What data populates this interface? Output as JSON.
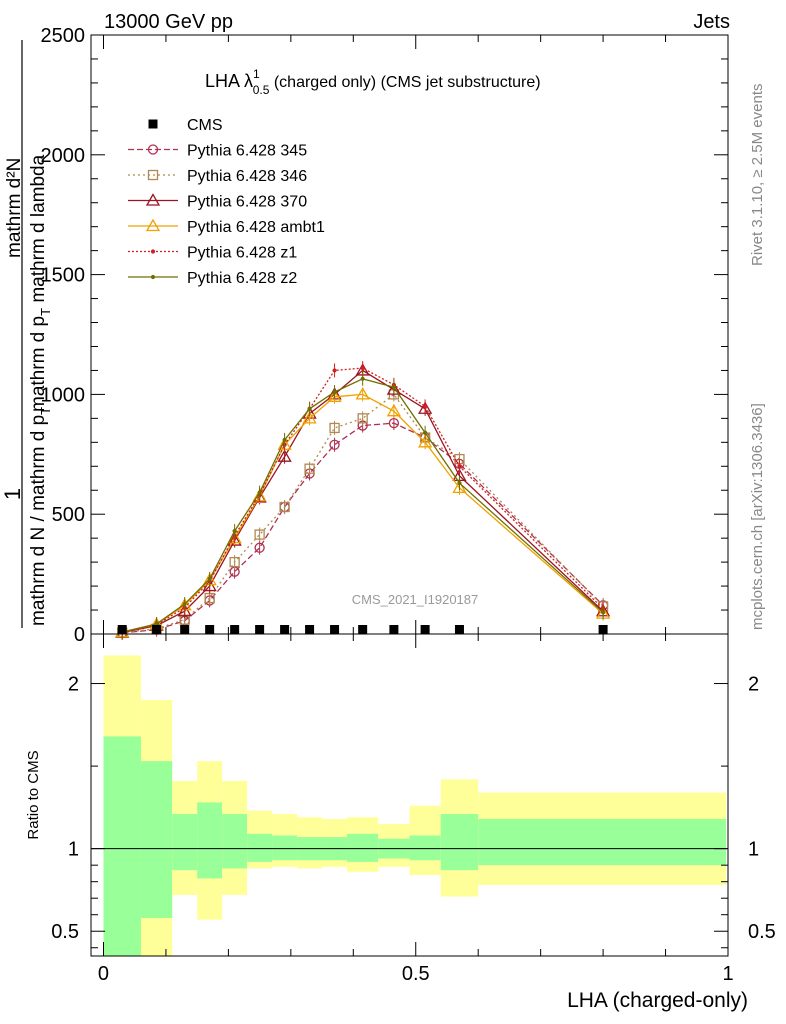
{
  "header": {
    "left": "13000 GeV pp",
    "right": "Jets"
  },
  "side_labels": {
    "rivet": "Rivet 3.1.10, ≥ 2.5M events",
    "mcplots": "mcplots.cern.ch [arXiv:1306.3436]"
  },
  "chart_data": [
    {
      "type": "line",
      "title_main": "LHA λ",
      "title_sup": "1",
      "title_sub": "0.5",
      "title_rest": " (charged only) (CMS jet substructure)",
      "watermark": "CMS_2021_I1920187",
      "ylabel": {
        "numerator": "1",
        "denominator": "mathrm d N / mathrm d p",
        "numerator2": "mathrm d²N",
        "denominator2": "mathrm d p",
        "denominator2_rest": " mathrm d lambda",
        "sub": "T"
      },
      "xlim": [
        -0.02,
        1.0
      ],
      "ylim": [
        0,
        2500
      ],
      "yticks": [
        0,
        500,
        1000,
        1500,
        2000,
        2500
      ],
      "ytick_labels": [
        "0",
        "500",
        "1000",
        "1500",
        "2000",
        "2500"
      ],
      "legend_position": "top-left",
      "cms": {
        "name": "CMS",
        "x": [
          0.03,
          0.085,
          0.13,
          0.17,
          0.21,
          0.25,
          0.29,
          0.33,
          0.37,
          0.415,
          0.465,
          0.515,
          0.57,
          0.8
        ],
        "y": [
          4,
          4,
          4,
          4,
          4,
          4,
          4,
          4,
          4,
          4,
          4,
          4,
          4,
          4
        ]
      },
      "series": [
        {
          "name": "Pythia 6.428 345",
          "color": "#b03050",
          "dash": "6,3",
          "marker": "circle",
          "x": [
            0.03,
            0.085,
            0.13,
            0.17,
            0.21,
            0.25,
            0.29,
            0.33,
            0.37,
            0.415,
            0.465,
            0.515,
            0.57,
            0.8
          ],
          "y": [
            5,
            18,
            55,
            140,
            260,
            360,
            530,
            670,
            790,
            870,
            880,
            820,
            710,
            120
          ]
        },
        {
          "name": "Pythia 6.428 346",
          "color": "#b08850",
          "dash": "2,3",
          "marker": "square",
          "x": [
            0.03,
            0.085,
            0.13,
            0.17,
            0.21,
            0.25,
            0.29,
            0.33,
            0.37,
            0.415,
            0.465,
            0.515,
            0.57,
            0.8
          ],
          "y": [
            6,
            22,
            60,
            150,
            300,
            415,
            530,
            690,
            860,
            900,
            1000,
            820,
            730,
            115
          ]
        },
        {
          "name": "Pythia 6.428 370",
          "color": "#9b1320",
          "dash": "",
          "marker": "triangle",
          "x": [
            0.03,
            0.085,
            0.13,
            0.17,
            0.21,
            0.25,
            0.29,
            0.33,
            0.37,
            0.415,
            0.465,
            0.515,
            0.57,
            0.8
          ],
          "y": [
            6,
            35,
            95,
            200,
            390,
            570,
            740,
            920,
            1000,
            1100,
            1020,
            940,
            660,
            95
          ]
        },
        {
          "name": "Pythia 6.428 ambt1",
          "color": "#f0a000",
          "dash": "",
          "marker": "triangle",
          "x": [
            0.03,
            0.085,
            0.13,
            0.17,
            0.21,
            0.25,
            0.29,
            0.33,
            0.37,
            0.415,
            0.465,
            0.515,
            0.57,
            0.8
          ],
          "y": [
            8,
            40,
            120,
            225,
            400,
            575,
            790,
            900,
            990,
            1000,
            930,
            800,
            610,
            85
          ]
        },
        {
          "name": "Pythia 6.428 z1",
          "color": "#d02020",
          "dash": "2,2",
          "marker": "dot",
          "x": [
            0.03,
            0.085,
            0.13,
            0.17,
            0.21,
            0.25,
            0.29,
            0.33,
            0.37,
            0.415,
            0.465,
            0.515,
            0.57,
            0.8
          ],
          "y": [
            7,
            38,
            110,
            220,
            410,
            580,
            790,
            940,
            1100,
            1110,
            1040,
            950,
            700,
            105
          ]
        },
        {
          "name": "Pythia 6.428 z2",
          "color": "#707000",
          "dash": "",
          "marker": "dot",
          "x": [
            0.03,
            0.085,
            0.13,
            0.17,
            0.21,
            0.25,
            0.29,
            0.33,
            0.37,
            0.415,
            0.465,
            0.515,
            0.57,
            0.8
          ],
          "y": [
            8,
            42,
            125,
            230,
            430,
            590,
            810,
            940,
            1010,
            1065,
            1030,
            840,
            630,
            90
          ]
        }
      ]
    },
    {
      "type": "area",
      "ylabel": "Ratio to CMS",
      "xlabel": "LHA (charged-only)",
      "xlim": [
        -0.02,
        1.0
      ],
      "ylim": [
        0.35,
        2.3
      ],
      "xticks": [
        0,
        0.5,
        1
      ],
      "xtick_labels": [
        "0",
        "0.5",
        "1"
      ],
      "yticks": [
        0.5,
        1,
        2
      ],
      "ytick_labels": [
        "0.5",
        "1",
        "2"
      ],
      "reference_line": 1,
      "bins": [
        {
          "lo": 0.0,
          "hi": 0.06,
          "y1lo": 0.3,
          "y1hi": 1.68,
          "y2lo": 0.3,
          "y2hi": 2.17
        },
        {
          "lo": 0.06,
          "hi": 0.11,
          "y1lo": 0.58,
          "y1hi": 1.53,
          "y2lo": 0.3,
          "y2hi": 1.9
        },
        {
          "lo": 0.11,
          "hi": 0.15,
          "y1lo": 0.87,
          "y1hi": 1.21,
          "y2lo": 0.72,
          "y2hi": 1.41
        },
        {
          "lo": 0.15,
          "hi": 0.19,
          "y1lo": 0.82,
          "y1hi": 1.28,
          "y2lo": 0.57,
          "y2hi": 1.53
        },
        {
          "lo": 0.19,
          "hi": 0.23,
          "y1lo": 0.88,
          "y1hi": 1.21,
          "y2lo": 0.72,
          "y2hi": 1.41
        },
        {
          "lo": 0.23,
          "hi": 0.27,
          "y1lo": 0.92,
          "y1hi": 1.09,
          "y2lo": 0.88,
          "y2hi": 1.23
        },
        {
          "lo": 0.27,
          "hi": 0.31,
          "y1lo": 0.93,
          "y1hi": 1.08,
          "y2lo": 0.89,
          "y2hi": 1.21
        },
        {
          "lo": 0.31,
          "hi": 0.35,
          "y1lo": 0.93,
          "y1hi": 1.07,
          "y2lo": 0.88,
          "y2hi": 1.19
        },
        {
          "lo": 0.35,
          "hi": 0.39,
          "y1lo": 0.93,
          "y1hi": 1.07,
          "y2lo": 0.89,
          "y2hi": 1.18
        },
        {
          "lo": 0.39,
          "hi": 0.44,
          "y1lo": 0.92,
          "y1hi": 1.09,
          "y2lo": 0.86,
          "y2hi": 1.19
        },
        {
          "lo": 0.44,
          "hi": 0.49,
          "y1lo": 0.94,
          "y1hi": 1.06,
          "y2lo": 0.89,
          "y2hi": 1.15
        },
        {
          "lo": 0.49,
          "hi": 0.54,
          "y1lo": 0.93,
          "y1hi": 1.08,
          "y2lo": 0.84,
          "y2hi": 1.26
        },
        {
          "lo": 0.54,
          "hi": 0.6,
          "y1lo": 0.87,
          "y1hi": 1.21,
          "y2lo": 0.71,
          "y2hi": 1.42
        },
        {
          "lo": 0.6,
          "hi": 0.997,
          "y1lo": 0.9,
          "y1hi": 1.18,
          "y2lo": 0.78,
          "y2hi": 1.34
        }
      ]
    }
  ]
}
